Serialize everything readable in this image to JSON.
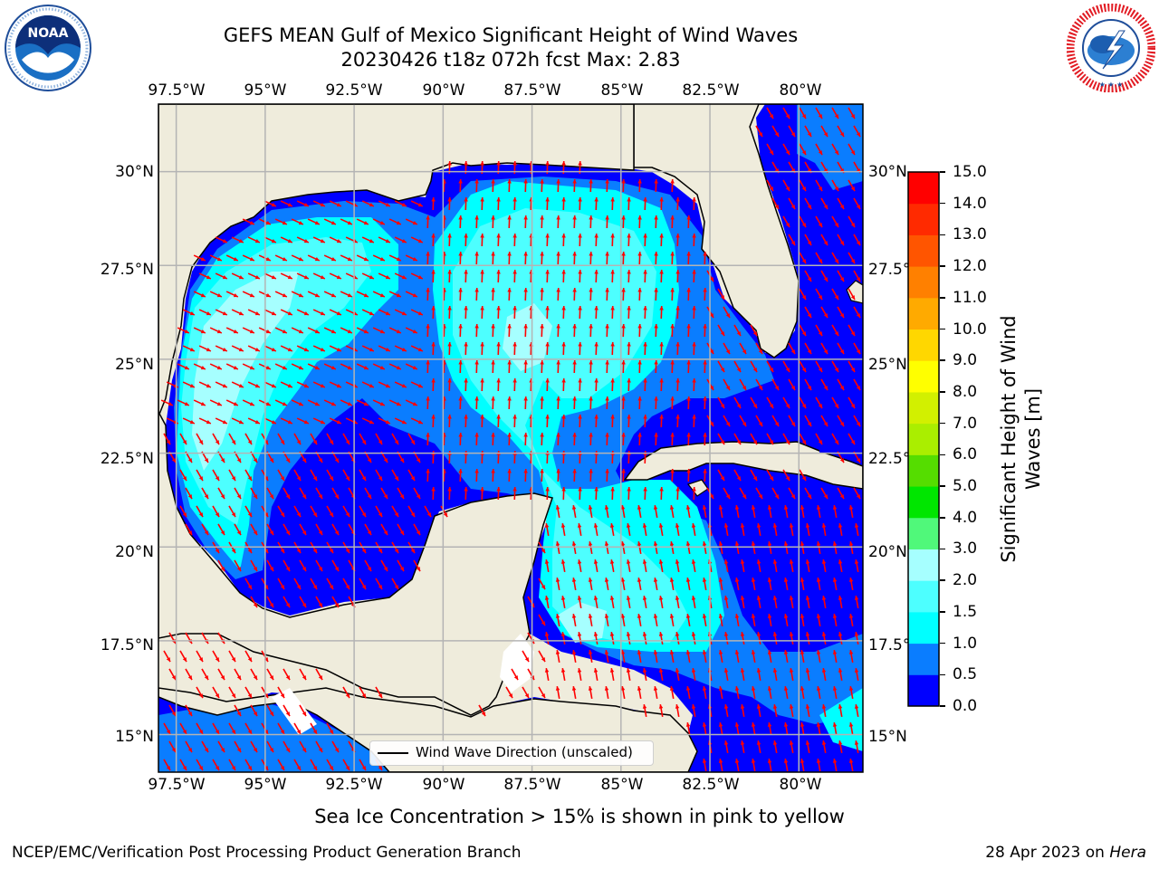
{
  "header": {
    "title_line1": "GEFS MEAN Gulf of Mexico Significant Height of Wind Waves",
    "title_line2": "20230426 t18z 072h fcst   Max: 2.83"
  },
  "logos": {
    "left": {
      "name": "NOAA",
      "ring_text": "NATIONAL OCEANIC AND ATMOSPHERIC ADMINISTRATION · U.S. DEPARTMENT OF COMMERCE"
    },
    "right": {
      "name": "National Weather Service",
      "ring_text": "NATIONAL WEATHER SERVICE"
    }
  },
  "map": {
    "lon_ticks": [
      "97.5°W",
      "95°W",
      "92.5°W",
      "90°W",
      "87.5°W",
      "85°W",
      "82.5°W",
      "80°W"
    ],
    "lat_ticks": [
      "30°N",
      "27.5°N",
      "25°N",
      "22.5°N",
      "20°N",
      "17.5°N",
      "15°N"
    ],
    "lon_range": [
      -98,
      -78.2
    ],
    "lat_range": [
      14,
      31.8
    ],
    "land_color": "#efecdc",
    "arrow_color": "#ff0000",
    "grid": true,
    "legend_label": "Wind Wave Direction (unscaled)"
  },
  "colorbar": {
    "title": "Significant Height of Wind Waves [m]",
    "title_lines": [
      "Significant Height of Wind",
      "Waves [m]"
    ],
    "levels": [
      "0.0",
      "0.5",
      "1.0",
      "1.5",
      "2.0",
      "3.0",
      "4.0",
      "5.0",
      "6.0",
      "7.0",
      "8.0",
      "9.0",
      "10.0",
      "11.0",
      "12.0",
      "13.0",
      "14.0",
      "15.0"
    ],
    "colors": [
      "#0000ff",
      "#0a7dff",
      "#00ffff",
      "#4dffff",
      "#a6ffff",
      "#50f87a",
      "#00e600",
      "#55dd00",
      "#aaee00",
      "#d2f000",
      "#ffff00",
      "#ffd700",
      "#ffaa00",
      "#ff8000",
      "#ff5500",
      "#ff2a00",
      "#ff0000"
    ]
  },
  "note": "Sea Ice Concentration > 15% is shown in pink to yellow",
  "footer": {
    "left": "NCEP/EMC/Verification Post Processing Product Generation Branch",
    "date": "28 Apr 2023 on",
    "machine": "Hera"
  }
}
